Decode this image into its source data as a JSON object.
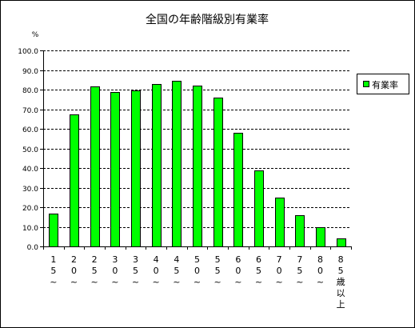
{
  "chart_data": {
    "type": "bar",
    "title": "全国の年齢階級別有業率",
    "ylabel": "%",
    "xlabel": "",
    "ylim": [
      0,
      100
    ],
    "yticks": [
      "0.0",
      "10.0",
      "20.0",
      "30.0",
      "40.0",
      "50.0",
      "60.0",
      "70.0",
      "80.0",
      "90.0",
      "100.0"
    ],
    "grid": true,
    "grid_style": "dashed",
    "legend_position": "right",
    "bar_color": "#00ff00",
    "categories": [
      "15~",
      "20~",
      "25~",
      "30~",
      "35~",
      "40~",
      "45~",
      "50~",
      "55~",
      "60~",
      "65~",
      "70~",
      "75~",
      "80~",
      "85歳以上"
    ],
    "category_labels_vertical": [
      [
        "1",
        "5",
        "~"
      ],
      [
        "2",
        "0",
        "~"
      ],
      [
        "2",
        "5",
        "~"
      ],
      [
        "3",
        "0",
        "~"
      ],
      [
        "3",
        "5",
        "~"
      ],
      [
        "4",
        "0",
        "~"
      ],
      [
        "4",
        "5",
        "~"
      ],
      [
        "5",
        "0",
        "~"
      ],
      [
        "5",
        "5",
        "~"
      ],
      [
        "6",
        "0",
        "~"
      ],
      [
        "6",
        "5",
        "~"
      ],
      [
        "7",
        "0",
        "~"
      ],
      [
        "7",
        "5",
        "~"
      ],
      [
        "8",
        "0",
        "~"
      ],
      [
        "8",
        "5",
        "歳",
        "以",
        "上"
      ]
    ],
    "series": [
      {
        "name": "有業率",
        "values": [
          16.7,
          67.2,
          81.6,
          78.8,
          79.7,
          82.9,
          84.5,
          82.1,
          75.9,
          58.1,
          38.8,
          24.9,
          15.8,
          9.7,
          4.0
        ]
      }
    ]
  }
}
